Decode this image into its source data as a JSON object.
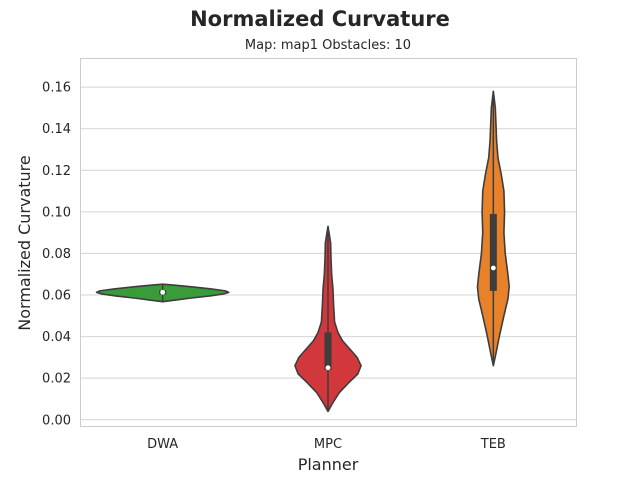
{
  "chart_data": {
    "type": "violin",
    "title": "Normalized Curvature",
    "subtitle": "Map: map1 Obstacles: 10",
    "xlabel": "Planner",
    "ylabel": "Normalized Curvature",
    "ylim": [
      -0.003,
      0.174
    ],
    "yticks": [
      "0.00",
      "0.02",
      "0.04",
      "0.06",
      "0.08",
      "0.10",
      "0.12",
      "0.14",
      "0.16"
    ],
    "grid": true,
    "categories": [
      "DWA",
      "MPC",
      "TEB"
    ],
    "series": [
      {
        "name": "DWA",
        "color": "#3a9b3a",
        "min": 0.0568,
        "max": 0.0652,
        "q1": 0.0603,
        "median": 0.0613,
        "q3": 0.0622,
        "profile": [
          [
            0.0568,
            0.0
          ],
          [
            0.0575,
            0.18
          ],
          [
            0.0585,
            0.42
          ],
          [
            0.0595,
            0.7
          ],
          [
            0.0605,
            0.92
          ],
          [
            0.0613,
            1.0
          ],
          [
            0.062,
            0.95
          ],
          [
            0.063,
            0.72
          ],
          [
            0.064,
            0.42
          ],
          [
            0.0648,
            0.16
          ],
          [
            0.0652,
            0.0
          ]
        ]
      },
      {
        "name": "MPC",
        "color": "#d1373b",
        "min": 0.004,
        "max": 0.093,
        "q1": 0.024,
        "median": 0.025,
        "q3": 0.042,
        "profile": [
          [
            0.004,
            0.0
          ],
          [
            0.008,
            0.07
          ],
          [
            0.013,
            0.17
          ],
          [
            0.018,
            0.32
          ],
          [
            0.022,
            0.45
          ],
          [
            0.026,
            0.5
          ],
          [
            0.03,
            0.44
          ],
          [
            0.034,
            0.33
          ],
          [
            0.038,
            0.22
          ],
          [
            0.042,
            0.15
          ],
          [
            0.047,
            0.1
          ],
          [
            0.055,
            0.085
          ],
          [
            0.063,
            0.075
          ],
          [
            0.07,
            0.055
          ],
          [
            0.078,
            0.045
          ],
          [
            0.085,
            0.04
          ],
          [
            0.093,
            0.0
          ]
        ]
      },
      {
        "name": "TEB",
        "color": "#e8822a",
        "min": 0.026,
        "max": 0.158,
        "q1": 0.062,
        "median": 0.073,
        "q3": 0.099,
        "profile": [
          [
            0.026,
            0.0
          ],
          [
            0.032,
            0.04
          ],
          [
            0.04,
            0.09
          ],
          [
            0.05,
            0.16
          ],
          [
            0.058,
            0.22
          ],
          [
            0.064,
            0.24
          ],
          [
            0.07,
            0.22
          ],
          [
            0.08,
            0.18
          ],
          [
            0.09,
            0.16
          ],
          [
            0.1,
            0.17
          ],
          [
            0.11,
            0.16
          ],
          [
            0.118,
            0.12
          ],
          [
            0.126,
            0.07
          ],
          [
            0.134,
            0.05
          ],
          [
            0.142,
            0.04
          ],
          [
            0.15,
            0.03
          ],
          [
            0.158,
            0.0
          ]
        ]
      }
    ]
  }
}
